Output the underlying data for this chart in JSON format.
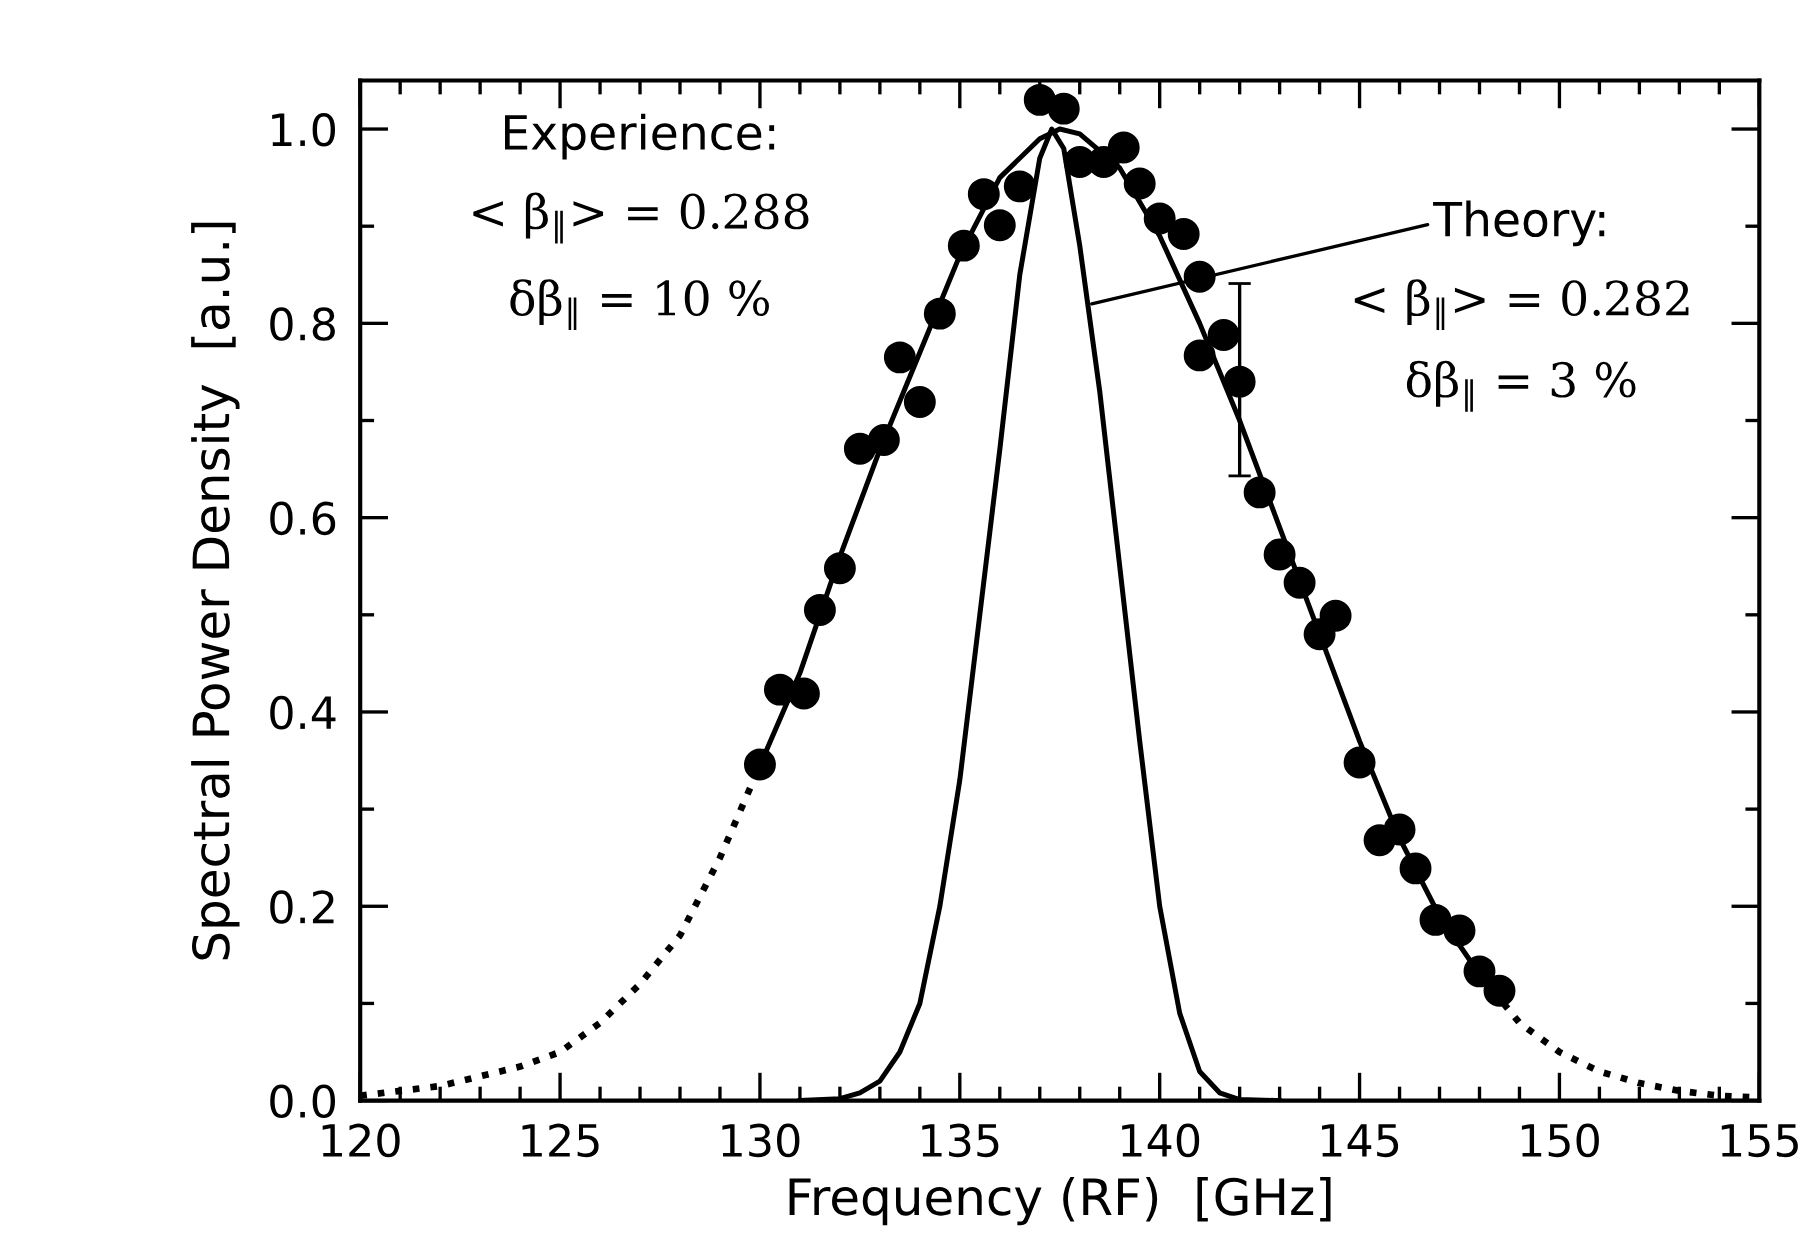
{
  "chart_data": {
    "type": "scatter",
    "xlabel": "Frequency (RF)  [GHz]",
    "ylabel": "Spectral Power Density  [a.u.]",
    "xlim": [
      120,
      155
    ],
    "ylim": [
      0,
      1.05
    ],
    "xticks": [
      120,
      {
        "value": 121,
        "label": null
      },
      {
        "value": 122,
        "label": null
      },
      {
        "value": 123,
        "label": null
      },
      {
        "value": 124,
        "label": null
      },
      125,
      {
        "value": 126,
        "label": null
      },
      {
        "value": 127,
        "label": null
      },
      {
        "value": 128,
        "label": null
      },
      {
        "value": 129,
        "label": null
      },
      130,
      {
        "value": 131,
        "label": null
      },
      {
        "value": 132,
        "label": null
      },
      {
        "value": 133,
        "label": null
      },
      {
        "value": 134,
        "label": null
      },
      135,
      {
        "value": 136,
        "label": null
      },
      {
        "value": 137,
        "label": null
      },
      {
        "value": 138,
        "label": null
      },
      {
        "value": 139,
        "label": null
      },
      140,
      {
        "value": 141,
        "label": null
      },
      {
        "value": 142,
        "label": null
      },
      {
        "value": 143,
        "label": null
      },
      {
        "value": 144,
        "label": null
      },
      145,
      {
        "value": 146,
        "label": null
      },
      {
        "value": 147,
        "label": null
      },
      {
        "value": 148,
        "label": null
      },
      {
        "value": 149,
        "label": null
      },
      150,
      {
        "value": 151,
        "label": null
      },
      {
        "value": 152,
        "label": null
      },
      {
        "value": 153,
        "label": null
      },
      {
        "value": 154,
        "label": null
      },
      155
    ],
    "yticks": [
      {
        "value": 0,
        "label": "0.0"
      },
      {
        "value": 0.1,
        "label": null
      },
      0.2,
      {
        "value": 0.3,
        "label": null
      },
      0.4,
      {
        "value": 0.5,
        "label": null
      },
      0.6,
      {
        "value": 0.7,
        "label": null
      },
      0.8,
      {
        "value": 0.9,
        "label": null
      },
      {
        "value": 1,
        "label": "1.0"
      }
    ],
    "grid": false,
    "legend": false,
    "series": [
      {
        "type": "scatter",
        "color": "#000000",
        "marker": "circle",
        "x": [
          130.0,
          130.5,
          131.1,
          131.5,
          132.0,
          132.5,
          133.1,
          133.5,
          134.0,
          134.5,
          135.1,
          135.6,
          136.0,
          136.5,
          137.0,
          137.6,
          138.0,
          138.6,
          139.1,
          139.5,
          140.0,
          140.6,
          141.0,
          141.0,
          141.6,
          142.0,
          142.5,
          143.0,
          143.5,
          144.0,
          144.4,
          145.0,
          145.5,
          146.0,
          146.4,
          146.9,
          147.5,
          148.0,
          148.5
        ],
        "values": [
          0.346,
          0.423,
          0.419,
          0.505,
          0.548,
          0.671,
          0.68,
          0.765,
          0.719,
          0.81,
          0.88,
          0.933,
          0.901,
          0.941,
          1.03,
          1.021,
          0.966,
          0.966,
          0.981,
          0.944,
          0.908,
          0.892,
          0.848,
          0.767,
          0.788,
          0.74,
          0.626,
          0.562,
          0.533,
          0.48,
          0.499,
          0.348,
          0.268,
          0.279,
          0.239,
          0.186,
          0.175,
          0.133,
          0.113
        ],
        "errors": [
          null,
          null,
          null,
          null,
          null,
          null,
          null,
          null,
          null,
          null,
          null,
          null,
          null,
          null,
          null,
          null,
          null,
          null,
          null,
          null,
          null,
          null,
          null,
          null,
          null,
          [
            0.643,
            0.841
          ],
          null,
          null,
          null,
          null,
          null,
          null,
          null,
          null,
          null,
          null,
          null,
          null,
          null
        ]
      },
      {
        "type": "line",
        "color": "#000000",
        "line_style": "dotted",
        "x": [
          120,
          121,
          122,
          123,
          124,
          125,
          126,
          127,
          128,
          129,
          130
        ],
        "values": [
          0.005,
          0.01,
          0.015,
          0.025,
          0.035,
          0.05,
          0.08,
          0.12,
          0.17,
          0.25,
          0.345
        ]
      },
      {
        "type": "line",
        "color": "#000000",
        "line_style": "solid",
        "x": [
          130,
          131,
          132,
          133,
          134,
          135,
          136,
          137,
          137.5,
          138,
          139,
          140,
          141,
          142,
          143,
          144,
          145,
          146,
          147,
          148,
          148.6
        ],
        "values": [
          0.345,
          0.44,
          0.56,
          0.67,
          0.77,
          0.87,
          0.95,
          0.99,
          1.0,
          0.995,
          0.96,
          0.89,
          0.8,
          0.7,
          0.59,
          0.48,
          0.37,
          0.27,
          0.19,
          0.13,
          0.1
        ]
      },
      {
        "type": "line",
        "color": "#000000",
        "line_style": "dotted",
        "x": [
          148.6,
          149,
          150,
          151,
          152,
          153,
          154,
          155
        ],
        "values": [
          0.1,
          0.08,
          0.05,
          0.03,
          0.018,
          0.01,
          0.005,
          0.003
        ]
      },
      {
        "type": "line",
        "color": "#000000",
        "line_style": "solid",
        "x": [
          131,
          132,
          132.5,
          133,
          133.5,
          134,
          134.5,
          135,
          135.5,
          136,
          136.5,
          137,
          137.3,
          137.6,
          138,
          138.5,
          139,
          139.5,
          140,
          140.5,
          141,
          141.5,
          142,
          143
        ],
        "values": [
          0.0,
          0.002,
          0.008,
          0.02,
          0.05,
          0.1,
          0.2,
          0.33,
          0.5,
          0.67,
          0.85,
          0.97,
          1.0,
          0.98,
          0.88,
          0.73,
          0.55,
          0.37,
          0.2,
          0.09,
          0.03,
          0.008,
          0.001,
          0.0
        ]
      }
    ],
    "annotations": [
      "Experience:",
      "< β$_{∥}$> = 0.288",
      "δβ$_{∥}$ = 10 %",
      {
        "text": "Theory:",
        "x": 138.3,
        "y": 0.82
      },
      "< β$_{∥}$> = 0.282",
      "δβ$_{∥}$ = 3 %"
    ]
  }
}
